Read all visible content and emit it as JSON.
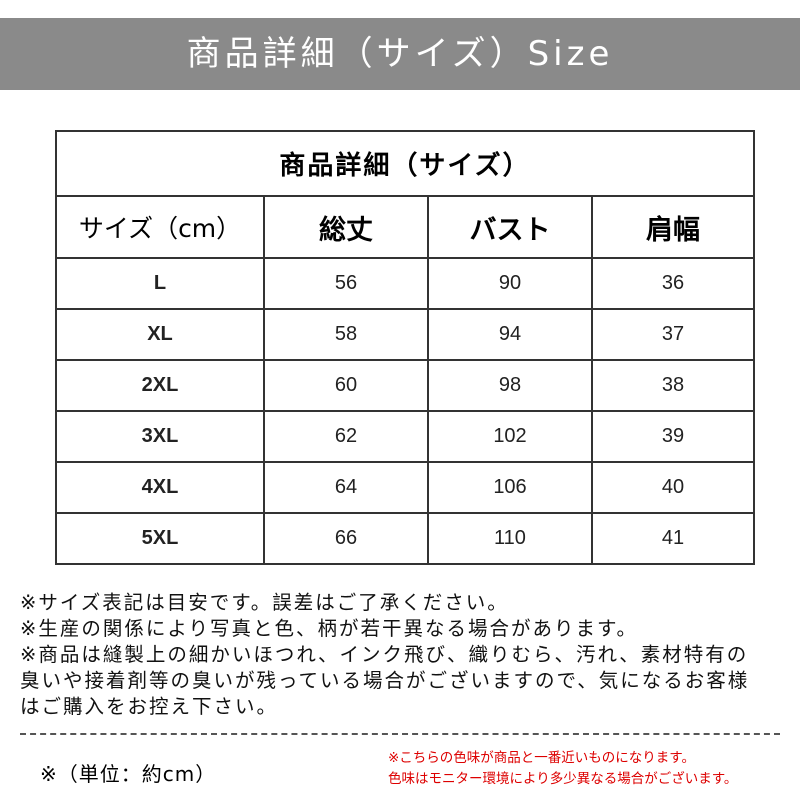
{
  "header": {
    "title": "商品詳細（サイズ）Size"
  },
  "table": {
    "title": "商品詳細（サイズ）",
    "columns": [
      "サイズ（cm）",
      "総丈",
      "バスト",
      "肩幅"
    ],
    "rows": [
      [
        "L",
        "56",
        "90",
        "36"
      ],
      [
        "XL",
        "58",
        "94",
        "37"
      ],
      [
        "2XL",
        "60",
        "98",
        "38"
      ],
      [
        "3XL",
        "62",
        "102",
        "39"
      ],
      [
        "4XL",
        "64",
        "106",
        "40"
      ],
      [
        "5XL",
        "66",
        "110",
        "41"
      ]
    ]
  },
  "notes": [
    "※サイズ表記は目安です。誤差はご了承ください。",
    "※生産の関係により写真と色、柄が若干異なる場合があります。",
    "※商品は縫製上の細かいほつれ、インク飛び、織りむら、汚れ、素材特有の",
    "臭いや接着剤等の臭いが残っている場合がございますので、気になるお客様",
    "はご購入をお控え下さい。"
  ],
  "footer": {
    "unit": "※（単位：約cm）",
    "color_notes": [
      "※こちらの色味が商品と一番近いものになります。",
      "色味はモニター環境により多少異なる場合がございます。"
    ]
  }
}
